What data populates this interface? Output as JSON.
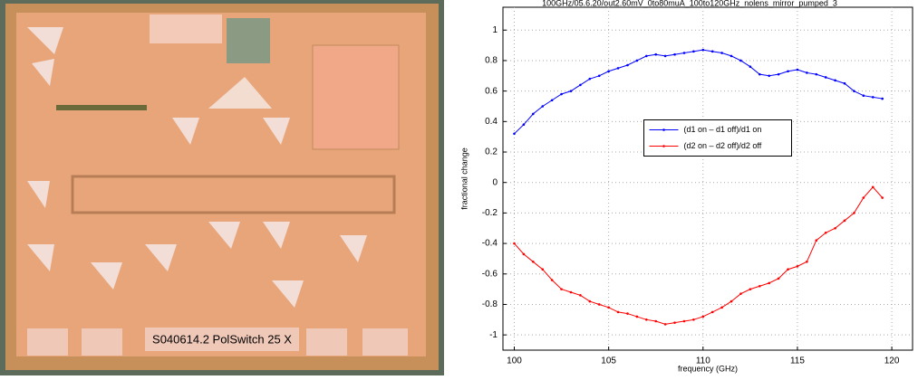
{
  "image": {
    "label": "S040614.2 PolSwitch 25 X"
  },
  "chart_data": {
    "type": "line",
    "title": "100GHz/05.6.20/out2.60mV_0to80muA_100to120GHz_nolens_mirror_pumped_3",
    "x_label": "frequency (GHz)",
    "y_label": "fractional change",
    "x": [
      100,
      100.5,
      101,
      101.5,
      102,
      102.5,
      103,
      103.5,
      104,
      104.5,
      105,
      105.5,
      106,
      106.5,
      107,
      107.5,
      108,
      108.5,
      109,
      109.5,
      110,
      110.5,
      111,
      111.5,
      112,
      112.5,
      113,
      113.5,
      114,
      114.5,
      115,
      115.5,
      116,
      116.5,
      117,
      117.5,
      118,
      118.5,
      119,
      119.5
    ],
    "series": [
      {
        "name": "(d1 on – d1 off)/d1 on",
        "color": "#0000ff",
        "values": [
          0.32,
          0.38,
          0.45,
          0.5,
          0.54,
          0.58,
          0.6,
          0.64,
          0.68,
          0.7,
          0.73,
          0.75,
          0.77,
          0.8,
          0.83,
          0.84,
          0.83,
          0.84,
          0.85,
          0.86,
          0.87,
          0.86,
          0.85,
          0.83,
          0.8,
          0.76,
          0.71,
          0.7,
          0.71,
          0.73,
          0.74,
          0.72,
          0.71,
          0.69,
          0.67,
          0.65,
          0.6,
          0.57,
          0.56,
          0.55
        ]
      },
      {
        "name": "(d2 on – d2 off)/d2 off",
        "color": "#ff0000",
        "values": [
          -0.4,
          -0.47,
          -0.52,
          -0.57,
          -0.64,
          -0.7,
          -0.72,
          -0.74,
          -0.78,
          -0.8,
          -0.82,
          -0.85,
          -0.86,
          -0.88,
          -0.9,
          -0.91,
          -0.93,
          -0.92,
          -0.91,
          -0.9,
          -0.88,
          -0.85,
          -0.82,
          -0.78,
          -0.73,
          -0.7,
          -0.68,
          -0.66,
          -0.63,
          -0.57,
          -0.55,
          -0.52,
          -0.38,
          -0.33,
          -0.3,
          -0.25,
          -0.2,
          -0.1,
          -0.03,
          -0.1
        ]
      }
    ],
    "xlim": [
      99.4,
      121.1
    ],
    "ylim": [
      -1.1,
      1.15
    ],
    "xticks": [
      100,
      105,
      110,
      115,
      120
    ],
    "yticks": [
      -1,
      -0.8,
      -0.6,
      -0.4,
      -0.2,
      0,
      0.2,
      0.4,
      0.6,
      0.8,
      1
    ],
    "grid": true,
    "legend": "center"
  }
}
